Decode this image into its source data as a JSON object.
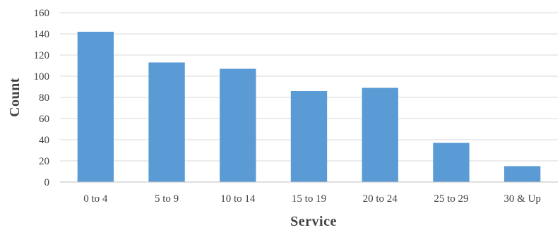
{
  "chart_data": {
    "type": "bar",
    "title": "",
    "xlabel": "Service",
    "ylabel": "Count",
    "categories": [
      "0 to 4",
      "5 to 9",
      "10 to 14",
      "15 to 19",
      "20 to 24",
      "25 to 29",
      "30 & Up"
    ],
    "values": [
      142,
      113,
      107,
      86,
      89,
      37,
      15
    ],
    "ylim": [
      0,
      160
    ],
    "yticks": [
      "0",
      "20",
      "40",
      "60",
      "80",
      "100",
      "120",
      "140",
      "160"
    ],
    "grid": true,
    "legend": "none",
    "bar_color": "#5b9bd5"
  }
}
